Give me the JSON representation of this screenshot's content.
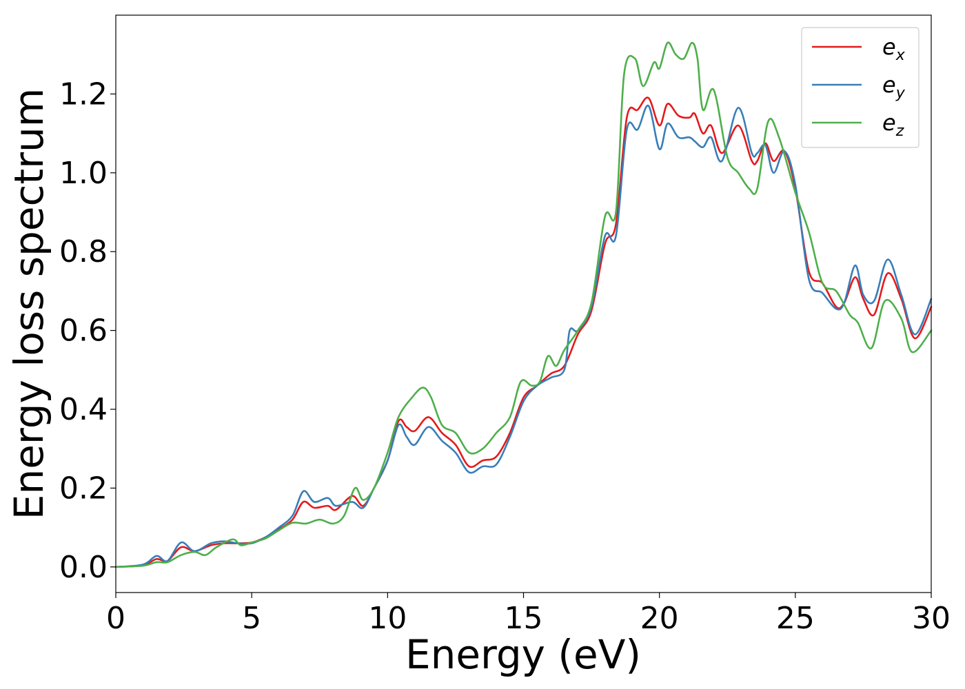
{
  "chart_data": {
    "type": "line",
    "title": "",
    "xlabel": "Energy (eV)",
    "ylabel": "Energy loss spectrum",
    "xlim": [
      0,
      30
    ],
    "ylim": [
      -0.065,
      1.4
    ],
    "xticks": [
      0,
      5,
      10,
      15,
      20,
      25,
      30
    ],
    "xtick_labels": [
      "0",
      "5",
      "10",
      "15",
      "20",
      "25",
      "30"
    ],
    "yticks": [
      0.0,
      0.2,
      0.4,
      0.6,
      0.8,
      1.0,
      1.2
    ],
    "ytick_labels": [
      "0.0",
      "0.2",
      "0.4",
      "0.6",
      "0.8",
      "1.0",
      "1.2"
    ],
    "grid": false,
    "legend_position": "top-right",
    "series": [
      {
        "name": "e_x",
        "legend_base": "e",
        "legend_sub": "x",
        "color": "#e41a1c",
        "x": [
          0,
          1,
          1.5,
          1.9,
          2.4,
          2.9,
          3.5,
          4.0,
          4.5,
          5.0,
          5.5,
          6.0,
          6.5,
          6.9,
          7.3,
          7.8,
          8.1,
          8.7,
          9.1,
          9.5,
          10.0,
          10.4,
          10.7,
          11.0,
          11.5,
          12.0,
          12.5,
          13.0,
          13.5,
          14.0,
          14.5,
          15.0,
          15.5,
          16.0,
          16.5,
          17.0,
          17.5,
          18.0,
          18.4,
          18.8,
          19.2,
          19.6,
          20.0,
          20.3,
          20.7,
          21.1,
          21.3,
          21.6,
          21.9,
          22.3,
          22.9,
          23.4,
          23.6,
          23.9,
          24.2,
          24.6,
          25.0,
          25.5,
          26.0,
          26.5,
          26.8,
          27.2,
          27.5,
          27.9,
          28.4,
          28.9,
          29.4,
          30.0
        ],
        "y": [
          0.0,
          0.004,
          0.02,
          0.015,
          0.05,
          0.04,
          0.055,
          0.06,
          0.06,
          0.062,
          0.075,
          0.095,
          0.12,
          0.165,
          0.15,
          0.155,
          0.145,
          0.18,
          0.155,
          0.2,
          0.27,
          0.37,
          0.355,
          0.345,
          0.38,
          0.34,
          0.31,
          0.255,
          0.27,
          0.28,
          0.34,
          0.43,
          0.46,
          0.49,
          0.51,
          0.59,
          0.65,
          0.82,
          0.87,
          1.14,
          1.16,
          1.19,
          1.12,
          1.175,
          1.145,
          1.14,
          1.15,
          1.1,
          1.12,
          1.05,
          1.12,
          1.03,
          1.03,
          1.075,
          1.03,
          1.055,
          0.96,
          0.75,
          0.72,
          0.66,
          0.67,
          0.735,
          0.68,
          0.64,
          0.745,
          0.68,
          0.58,
          0.66
        ]
      },
      {
        "name": "e_y",
        "legend_base": "e",
        "legend_sub": "y",
        "color": "#377eb8",
        "x": [
          0,
          1,
          1.5,
          1.9,
          2.4,
          2.9,
          3.5,
          4.0,
          4.5,
          5.0,
          5.5,
          6.0,
          6.5,
          6.9,
          7.3,
          7.8,
          8.1,
          8.7,
          9.1,
          9.5,
          10.0,
          10.4,
          10.7,
          11.0,
          11.5,
          12.0,
          12.5,
          13.0,
          13.5,
          14.0,
          14.5,
          15.0,
          15.5,
          16.0,
          16.5,
          16.7,
          17.0,
          17.5,
          18.0,
          18.4,
          18.8,
          19.2,
          19.6,
          20.0,
          20.3,
          20.7,
          21.1,
          21.3,
          21.6,
          21.9,
          22.3,
          22.9,
          23.4,
          23.6,
          23.9,
          24.2,
          24.6,
          25.0,
          25.5,
          26.0,
          26.5,
          26.8,
          27.2,
          27.5,
          27.9,
          28.4,
          28.9,
          29.4,
          30.0
        ],
        "y": [
          0.0,
          0.006,
          0.028,
          0.015,
          0.062,
          0.04,
          0.06,
          0.065,
          0.06,
          0.06,
          0.075,
          0.1,
          0.13,
          0.192,
          0.165,
          0.175,
          0.155,
          0.165,
          0.15,
          0.2,
          0.27,
          0.36,
          0.33,
          0.31,
          0.355,
          0.32,
          0.29,
          0.24,
          0.255,
          0.26,
          0.33,
          0.42,
          0.46,
          0.48,
          0.5,
          0.6,
          0.6,
          0.66,
          0.84,
          0.84,
          1.11,
          1.11,
          1.17,
          1.06,
          1.125,
          1.09,
          1.09,
          1.08,
          1.065,
          1.09,
          1.03,
          1.165,
          1.05,
          1.05,
          1.07,
          1.0,
          1.055,
          0.97,
          0.73,
          0.695,
          0.655,
          0.67,
          0.765,
          0.69,
          0.675,
          0.78,
          0.69,
          0.59,
          0.68
        ]
      },
      {
        "name": "e_z",
        "legend_base": "e",
        "legend_sub": "z",
        "color": "#4daf4a",
        "x": [
          0,
          1,
          1.5,
          1.9,
          2.4,
          2.9,
          3.3,
          3.7,
          4.3,
          4.6,
          5.0,
          5.5,
          6.0,
          6.5,
          7.0,
          7.5,
          8.0,
          8.4,
          8.8,
          9.1,
          9.5,
          10.0,
          10.4,
          10.9,
          11.3,
          11.6,
          12.0,
          12.5,
          13.0,
          13.5,
          14.0,
          14.5,
          14.9,
          15.3,
          15.6,
          15.9,
          16.2,
          16.5,
          17.0,
          17.5,
          18.0,
          18.4,
          18.7,
          19.1,
          19.4,
          19.8,
          20.0,
          20.3,
          20.6,
          20.9,
          21.2,
          21.4,
          21.6,
          22.0,
          22.5,
          22.9,
          23.3,
          23.6,
          24.0,
          24.4,
          25.0,
          25.5,
          26.0,
          26.5,
          27.0,
          27.3,
          27.8,
          28.3,
          28.9,
          29.3,
          30.0
        ],
        "y": [
          0.0,
          0.003,
          0.012,
          0.012,
          0.03,
          0.038,
          0.03,
          0.05,
          0.07,
          0.055,
          0.062,
          0.072,
          0.093,
          0.112,
          0.11,
          0.12,
          0.11,
          0.13,
          0.2,
          0.17,
          0.2,
          0.29,
          0.38,
          0.43,
          0.455,
          0.43,
          0.36,
          0.34,
          0.29,
          0.3,
          0.34,
          0.38,
          0.47,
          0.46,
          0.47,
          0.535,
          0.51,
          0.55,
          0.6,
          0.67,
          0.89,
          0.9,
          1.25,
          1.29,
          1.22,
          1.28,
          1.265,
          1.33,
          1.3,
          1.29,
          1.33,
          1.29,
          1.16,
          1.21,
          1.04,
          1.0,
          0.96,
          0.96,
          1.13,
          1.09,
          0.95,
          0.85,
          0.72,
          0.7,
          0.64,
          0.62,
          0.555,
          0.675,
          0.63,
          0.545,
          0.6
        ]
      }
    ]
  }
}
